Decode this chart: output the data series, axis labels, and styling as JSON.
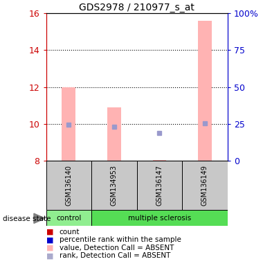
{
  "title": "GDS2978 / 210977_s_at",
  "samples": [
    "GSM136140",
    "GSM134953",
    "GSM136147",
    "GSM136149"
  ],
  "ylim_left": [
    8,
    16
  ],
  "ylim_right": [
    0,
    100
  ],
  "yticks_left": [
    8,
    10,
    12,
    14,
    16
  ],
  "yticks_right": [
    0,
    25,
    50,
    75,
    100
  ],
  "ytick_labels_right": [
    "0",
    "25",
    "50",
    "75",
    "100%"
  ],
  "pink_bar_bottoms": [
    8,
    8,
    8,
    8
  ],
  "pink_bar_tops": [
    12.0,
    10.9,
    8.05,
    15.6
  ],
  "blue_dot_values": [
    9.95,
    9.85,
    9.5,
    10.05
  ],
  "pink_color": "#ffb3b3",
  "blue_dot_color": "#9999cc",
  "bar_width": 0.3,
  "background_color": "#ffffff",
  "grid_color": "#000000",
  "control_color": "#90EE90",
  "ms_color": "#55dd55",
  "sample_bg": "#c8c8c8",
  "left_axis_color": "#cc0000",
  "right_axis_color": "#0000cc",
  "legend_colors": [
    "#cc0000",
    "#0000cc",
    "#ffb3b3",
    "#aaaacc"
  ],
  "legend_labels": [
    "count",
    "percentile rank within the sample",
    "value, Detection Call = ABSENT",
    "rank, Detection Call = ABSENT"
  ],
  "disease_state_label": "disease state"
}
